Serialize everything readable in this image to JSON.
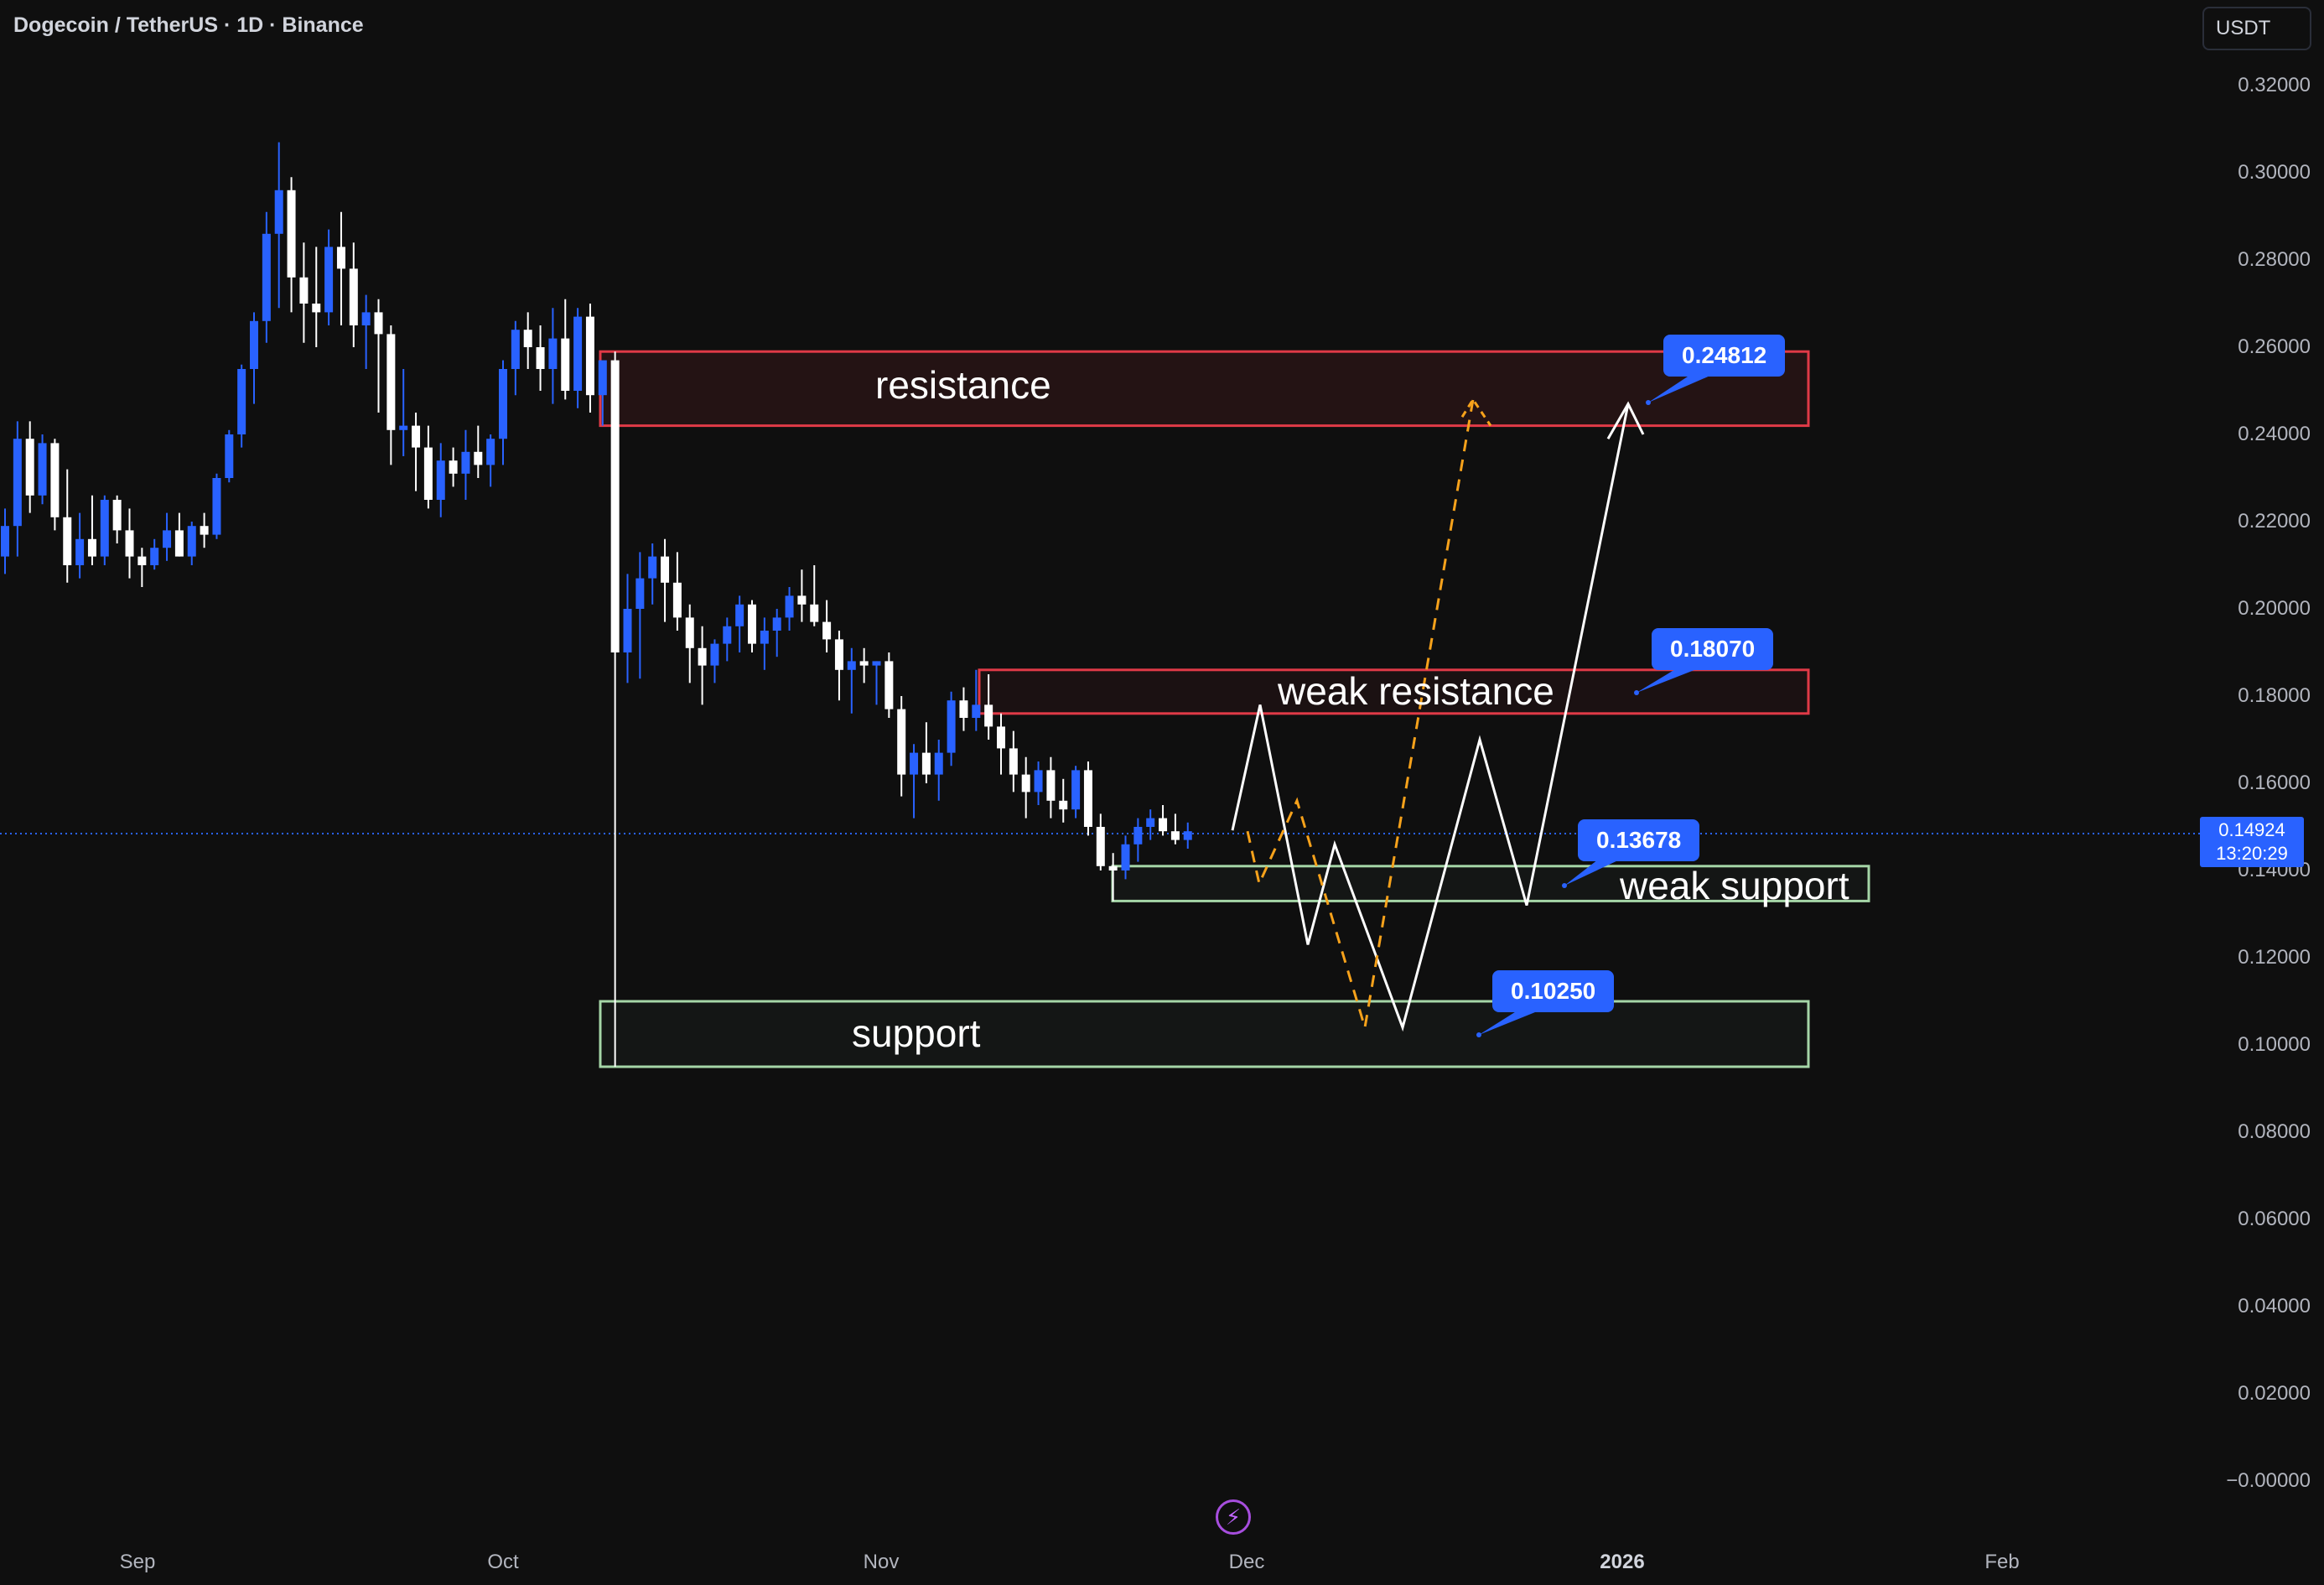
{
  "header": {
    "symbol_title": "Dogecoin / TetherUS · 1D · Binance",
    "currency": "USDT"
  },
  "price_scale": {
    "ticks": [
      "0.32000",
      "0.30000",
      "0.28000",
      "0.26000",
      "0.24000",
      "0.22000",
      "0.20000",
      "0.18000",
      "0.16000",
      "0.14000",
      "0.12000",
      "0.10000",
      "0.08000",
      "0.06000",
      "0.04000",
      "0.02000",
      "−0.00000"
    ],
    "last_price": "0.14924",
    "countdown": "13:20:29"
  },
  "time_scale": {
    "labels": [
      {
        "text": "Sep",
        "bold": false
      },
      {
        "text": "Oct",
        "bold": false
      },
      {
        "text": "Nov",
        "bold": false
      },
      {
        "text": "Dec",
        "bold": false
      },
      {
        "text": "2026",
        "bold": true
      },
      {
        "text": "Feb",
        "bold": false
      }
    ]
  },
  "annotations": {
    "resistance_label": "resistance",
    "weak_resistance_label": "weak resistance",
    "weak_support_label": "weak support",
    "support_label": "support",
    "callouts": [
      "0.24812",
      "0.18070",
      "0.13678",
      "0.10250"
    ]
  },
  "colors": {
    "background": "#0f0f0f",
    "up_candle": "#2962ff",
    "down_candle": "#ffffff",
    "resistance_zone": "#e03a47",
    "support_zone": "#a5d6a7",
    "callout": "#2962ff",
    "projection_primary": "#ffffff",
    "projection_alt": "#f7a21b"
  },
  "icons": {
    "bottom_center": "lightning-icon"
  },
  "chart_data": {
    "type": "candlestick",
    "title": "Dogecoin / TetherUS · 1D · Binance",
    "xlabel": "",
    "ylabel": "",
    "ylim": [
      0,
      0.32
    ],
    "x_ticks": [
      "Sep",
      "Oct",
      "Nov",
      "Dec",
      "2026",
      "Feb"
    ],
    "candles_ohlc_daily": [
      [
        0.212,
        0.223,
        0.208,
        0.219
      ],
      [
        0.219,
        0.243,
        0.212,
        0.239
      ],
      [
        0.239,
        0.243,
        0.222,
        0.226
      ],
      [
        0.226,
        0.24,
        0.224,
        0.238
      ],
      [
        0.238,
        0.239,
        0.218,
        0.221
      ],
      [
        0.221,
        0.232,
        0.206,
        0.21
      ],
      [
        0.21,
        0.222,
        0.207,
        0.216
      ],
      [
        0.216,
        0.226,
        0.21,
        0.212
      ],
      [
        0.212,
        0.226,
        0.21,
        0.225
      ],
      [
        0.225,
        0.226,
        0.215,
        0.218
      ],
      [
        0.218,
        0.223,
        0.207,
        0.212
      ],
      [
        0.212,
        0.214,
        0.205,
        0.21
      ],
      [
        0.21,
        0.216,
        0.209,
        0.214
      ],
      [
        0.214,
        0.222,
        0.211,
        0.218
      ],
      [
        0.218,
        0.222,
        0.212,
        0.212
      ],
      [
        0.212,
        0.22,
        0.21,
        0.219
      ],
      [
        0.219,
        0.222,
        0.214,
        0.217
      ],
      [
        0.217,
        0.231,
        0.216,
        0.23
      ],
      [
        0.23,
        0.241,
        0.229,
        0.24
      ],
      [
        0.24,
        0.256,
        0.237,
        0.255
      ],
      [
        0.255,
        0.268,
        0.247,
        0.266
      ],
      [
        0.266,
        0.291,
        0.261,
        0.286
      ],
      [
        0.286,
        0.307,
        0.269,
        0.296
      ],
      [
        0.296,
        0.299,
        0.268,
        0.276
      ],
      [
        0.276,
        0.284,
        0.261,
        0.27
      ],
      [
        0.27,
        0.283,
        0.26,
        0.268
      ],
      [
        0.268,
        0.287,
        0.265,
        0.283
      ],
      [
        0.283,
        0.291,
        0.265,
        0.278
      ],
      [
        0.278,
        0.284,
        0.26,
        0.265
      ],
      [
        0.265,
        0.272,
        0.255,
        0.268
      ],
      [
        0.268,
        0.271,
        0.245,
        0.263
      ],
      [
        0.263,
        0.265,
        0.233,
        0.241
      ],
      [
        0.241,
        0.255,
        0.235,
        0.242
      ],
      [
        0.242,
        0.245,
        0.227,
        0.237
      ],
      [
        0.237,
        0.242,
        0.223,
        0.225
      ],
      [
        0.225,
        0.238,
        0.221,
        0.234
      ],
      [
        0.234,
        0.237,
        0.228,
        0.231
      ],
      [
        0.231,
        0.241,
        0.225,
        0.236
      ],
      [
        0.236,
        0.242,
        0.23,
        0.233
      ],
      [
        0.233,
        0.24,
        0.228,
        0.239
      ],
      [
        0.239,
        0.257,
        0.233,
        0.255
      ],
      [
        0.255,
        0.266,
        0.249,
        0.264
      ],
      [
        0.264,
        0.268,
        0.255,
        0.26
      ],
      [
        0.26,
        0.265,
        0.25,
        0.255
      ],
      [
        0.255,
        0.269,
        0.247,
        0.262
      ],
      [
        0.262,
        0.271,
        0.248,
        0.25
      ],
      [
        0.25,
        0.269,
        0.246,
        0.267
      ],
      [
        0.267,
        0.27,
        0.245,
        0.249
      ],
      [
        0.249,
        0.256,
        0.242,
        0.257
      ],
      [
        0.257,
        0.259,
        0.095,
        0.19
      ],
      [
        0.19,
        0.208,
        0.183,
        0.2
      ],
      [
        0.2,
        0.213,
        0.184,
        0.207
      ],
      [
        0.207,
        0.215,
        0.201,
        0.212
      ],
      [
        0.212,
        0.216,
        0.197,
        0.206
      ],
      [
        0.206,
        0.213,
        0.195,
        0.198
      ],
      [
        0.198,
        0.201,
        0.183,
        0.191
      ],
      [
        0.191,
        0.196,
        0.178,
        0.187
      ],
      [
        0.187,
        0.193,
        0.183,
        0.192
      ],
      [
        0.192,
        0.198,
        0.188,
        0.196
      ],
      [
        0.196,
        0.203,
        0.19,
        0.201
      ],
      [
        0.201,
        0.202,
        0.19,
        0.192
      ],
      [
        0.192,
        0.198,
        0.186,
        0.195
      ],
      [
        0.195,
        0.2,
        0.189,
        0.198
      ],
      [
        0.198,
        0.205,
        0.195,
        0.203
      ],
      [
        0.203,
        0.209,
        0.197,
        0.201
      ],
      [
        0.201,
        0.21,
        0.196,
        0.197
      ],
      [
        0.197,
        0.202,
        0.19,
        0.193
      ],
      [
        0.193,
        0.195,
        0.179,
        0.186
      ],
      [
        0.186,
        0.191,
        0.176,
        0.188
      ],
      [
        0.188,
        0.191,
        0.183,
        0.187
      ],
      [
        0.187,
        0.188,
        0.178,
        0.188
      ],
      [
        0.188,
        0.19,
        0.175,
        0.177
      ],
      [
        0.177,
        0.18,
        0.157,
        0.162
      ],
      [
        0.162,
        0.169,
        0.152,
        0.167
      ],
      [
        0.167,
        0.174,
        0.16,
        0.162
      ],
      [
        0.162,
        0.17,
        0.156,
        0.167
      ],
      [
        0.167,
        0.181,
        0.164,
        0.179
      ],
      [
        0.179,
        0.182,
        0.172,
        0.175
      ],
      [
        0.175,
        0.186,
        0.172,
        0.178
      ],
      [
        0.178,
        0.185,
        0.17,
        0.173
      ],
      [
        0.173,
        0.176,
        0.162,
        0.168
      ],
      [
        0.168,
        0.172,
        0.158,
        0.162
      ],
      [
        0.162,
        0.166,
        0.152,
        0.158
      ],
      [
        0.158,
        0.165,
        0.155,
        0.163
      ],
      [
        0.163,
        0.166,
        0.152,
        0.156
      ],
      [
        0.156,
        0.161,
        0.151,
        0.154
      ],
      [
        0.154,
        0.164,
        0.152,
        0.163
      ],
      [
        0.163,
        0.165,
        0.148,
        0.15
      ],
      [
        0.15,
        0.153,
        0.14,
        0.141
      ],
      [
        0.141,
        0.144,
        0.133,
        0.14
      ],
      [
        0.14,
        0.148,
        0.138,
        0.146
      ],
      [
        0.146,
        0.152,
        0.142,
        0.15
      ],
      [
        0.15,
        0.154,
        0.147,
        0.152
      ],
      [
        0.152,
        0.155,
        0.148,
        0.149
      ],
      [
        0.149,
        0.153,
        0.146,
        0.147
      ],
      [
        0.147,
        0.151,
        0.145,
        0.149
      ]
    ],
    "zones": [
      {
        "label": "resistance",
        "low": 0.242,
        "high": 0.259
      },
      {
        "label": "weak resistance",
        "low": 0.176,
        "high": 0.186
      },
      {
        "label": "weak support",
        "low": 0.133,
        "high": 0.141
      },
      {
        "label": "support",
        "low": 0.095,
        "high": 0.11
      }
    ],
    "targets": [
      0.24812,
      0.1807,
      0.13678,
      0.1025
    ],
    "last_price": 0.14924
  }
}
